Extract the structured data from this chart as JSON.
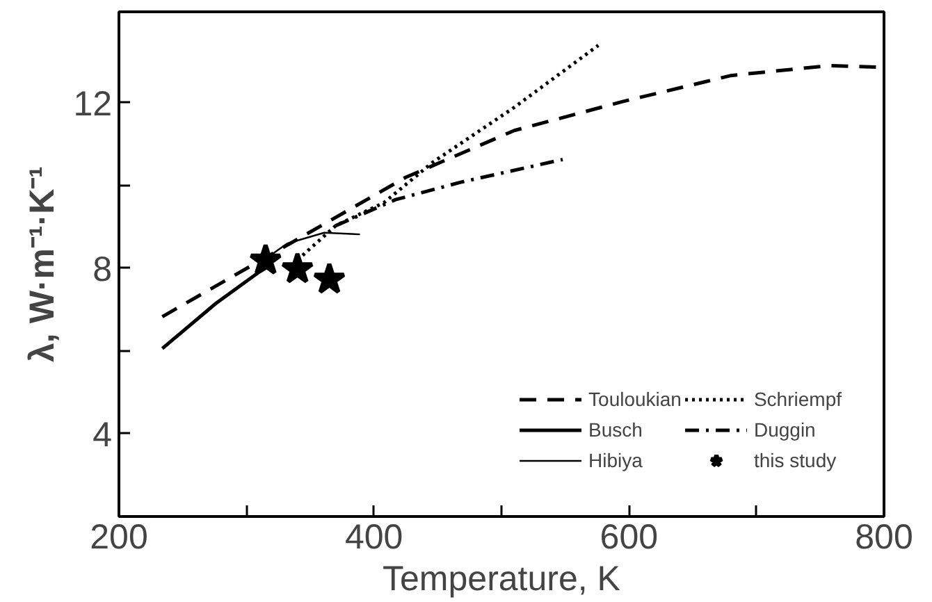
{
  "chart_data": {
    "type": "line",
    "xlabel": "Temperature, K",
    "ylabel": "λ, W·m⁻¹·K⁻¹",
    "xlim": [
      200,
      800
    ],
    "ylim": [
      2,
      14.2
    ],
    "xticks": [
      200,
      {
        "value": 300,
        "label": null
      },
      400,
      {
        "value": 500,
        "label": null
      },
      600,
      {
        "value": 700,
        "label": null
      },
      800
    ],
    "yticks": [
      4,
      {
        "value": 6,
        "label": null
      },
      8,
      {
        "value": 10,
        "label": null
      },
      12
    ],
    "grid": false,
    "legend": "bottom right",
    "series": [
      {
        "name": "Touloukian",
        "color": "#000000",
        "line_style": "dashed",
        "x": [
          234,
          315,
          425,
          510,
          595,
          680,
          757,
          800
        ],
        "values": [
          6.83,
          8.26,
          10.2,
          11.33,
          12.03,
          12.66,
          12.9,
          12.86
        ]
      },
      {
        "name": "Busch",
        "color": "#000000",
        "line_style": "solid",
        "x": [
          234,
          276,
          310,
          320
        ],
        "values": [
          6.06,
          7.15,
          7.91,
          8.1
        ]
      },
      {
        "name": "Hibiya",
        "color": "#000000",
        "line_style": "solid",
        "x": [
          310,
          332,
          361,
          389
        ],
        "values": [
          8.12,
          8.6,
          8.86,
          8.82
        ]
      },
      {
        "name": "Schriempf",
        "color": "#000000",
        "line_style": "dotted",
        "x": [
          340,
          370,
          408,
          446,
          510,
          576
        ],
        "values": [
          8.2,
          9.03,
          9.59,
          10.56,
          11.89,
          13.39
        ]
      },
      {
        "name": "Duggin",
        "color": "#000000",
        "line_style": "dashdot",
        "x": [
          370,
          417,
          468,
          548
        ],
        "values": [
          9.03,
          9.66,
          10.08,
          10.63
        ]
      },
      {
        "name": "this study",
        "type": "scatter",
        "marker": "star",
        "color": "#000000",
        "x": [
          315,
          340,
          365
        ],
        "values": [
          8.19,
          7.98,
          7.73
        ]
      }
    ]
  }
}
